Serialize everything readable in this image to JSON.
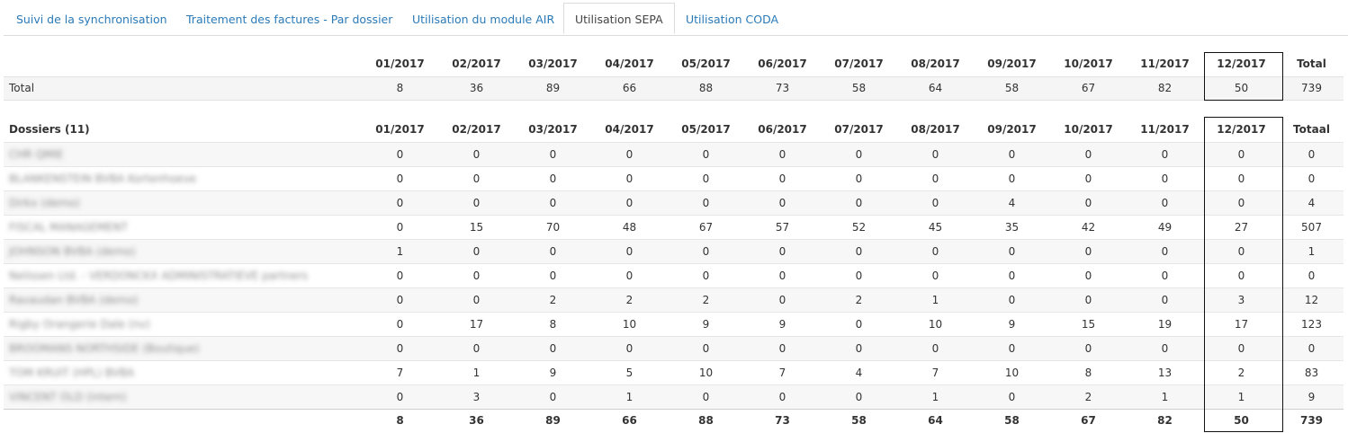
{
  "tabs": [
    {
      "label": "Suivi de la synchronisation",
      "active": false
    },
    {
      "label": "Traitement des factures - Par dossier",
      "active": false
    },
    {
      "label": "Utilisation du module AIR",
      "active": false
    },
    {
      "label": "Utilisation SEPA",
      "active": true
    },
    {
      "label": "Utilisation CODA",
      "active": false
    }
  ],
  "months": [
    "01/2017",
    "02/2017",
    "03/2017",
    "04/2017",
    "05/2017",
    "06/2017",
    "07/2017",
    "08/2017",
    "09/2017",
    "10/2017",
    "11/2017",
    "12/2017"
  ],
  "total_table": {
    "total_header": "Total",
    "row_label": "Total",
    "values": [
      "8",
      "36",
      "89",
      "66",
      "88",
      "73",
      "58",
      "64",
      "58",
      "67",
      "82",
      "50",
      "739"
    ]
  },
  "detail_table": {
    "header_label": "Dossiers (11)",
    "total_header": "Totaal",
    "rows": [
      {
        "name": "CHR QMIE",
        "values": [
          "0",
          "0",
          "0",
          "0",
          "0",
          "0",
          "0",
          "0",
          "0",
          "0",
          "0",
          "0",
          "0"
        ]
      },
      {
        "name": "BLANKENSTEIN BVBA Kortenhoeve",
        "values": [
          "0",
          "0",
          "0",
          "0",
          "0",
          "0",
          "0",
          "0",
          "0",
          "0",
          "0",
          "0",
          "0"
        ]
      },
      {
        "name": "Dirkx (demo)",
        "values": [
          "0",
          "0",
          "0",
          "0",
          "0",
          "0",
          "0",
          "0",
          "4",
          "0",
          "0",
          "0",
          "4"
        ]
      },
      {
        "name": "FISCAL MANAGEMENT",
        "values": [
          "0",
          "15",
          "70",
          "48",
          "67",
          "57",
          "52",
          "45",
          "35",
          "42",
          "49",
          "27",
          "507"
        ]
      },
      {
        "name": "JOHNSON BVBA (demo)",
        "values": [
          "1",
          "0",
          "0",
          "0",
          "0",
          "0",
          "0",
          "0",
          "0",
          "0",
          "0",
          "0",
          "1"
        ]
      },
      {
        "name": "Nelissen Ltd. - VERDONCKX ADMINISTRATIEVE partners",
        "values": [
          "0",
          "0",
          "0",
          "0",
          "0",
          "0",
          "0",
          "0",
          "0",
          "0",
          "0",
          "0",
          "0"
        ]
      },
      {
        "name": "Ravaudan BVBA (demo)",
        "values": [
          "0",
          "0",
          "2",
          "2",
          "2",
          "0",
          "2",
          "1",
          "0",
          "0",
          "0",
          "3",
          "12"
        ]
      },
      {
        "name": "Rigby Orangerie Dale (nv)",
        "values": [
          "0",
          "17",
          "8",
          "10",
          "9",
          "9",
          "0",
          "10",
          "9",
          "15",
          "19",
          "17",
          "123"
        ]
      },
      {
        "name": "BROOMANS NORTHSIDE (Boutique)",
        "values": [
          "0",
          "0",
          "0",
          "0",
          "0",
          "0",
          "0",
          "0",
          "0",
          "0",
          "0",
          "0",
          "0"
        ]
      },
      {
        "name": "TOM KRUIT (HPL) BVBA",
        "values": [
          "7",
          "1",
          "9",
          "5",
          "10",
          "7",
          "4",
          "7",
          "10",
          "8",
          "13",
          "2",
          "83"
        ]
      },
      {
        "name": "VINCENT OLD (intern)",
        "values": [
          "0",
          "3",
          "0",
          "1",
          "0",
          "0",
          "0",
          "1",
          "0",
          "2",
          "1",
          "1",
          "9"
        ]
      }
    ],
    "footer_values": [
      "8",
      "36",
      "89",
      "66",
      "88",
      "73",
      "58",
      "64",
      "58",
      "67",
      "82",
      "50",
      "739"
    ]
  },
  "colors": {
    "link": "#2a7ab8",
    "row_alt": "#f7f7f7",
    "highlight_border": "#111111"
  }
}
